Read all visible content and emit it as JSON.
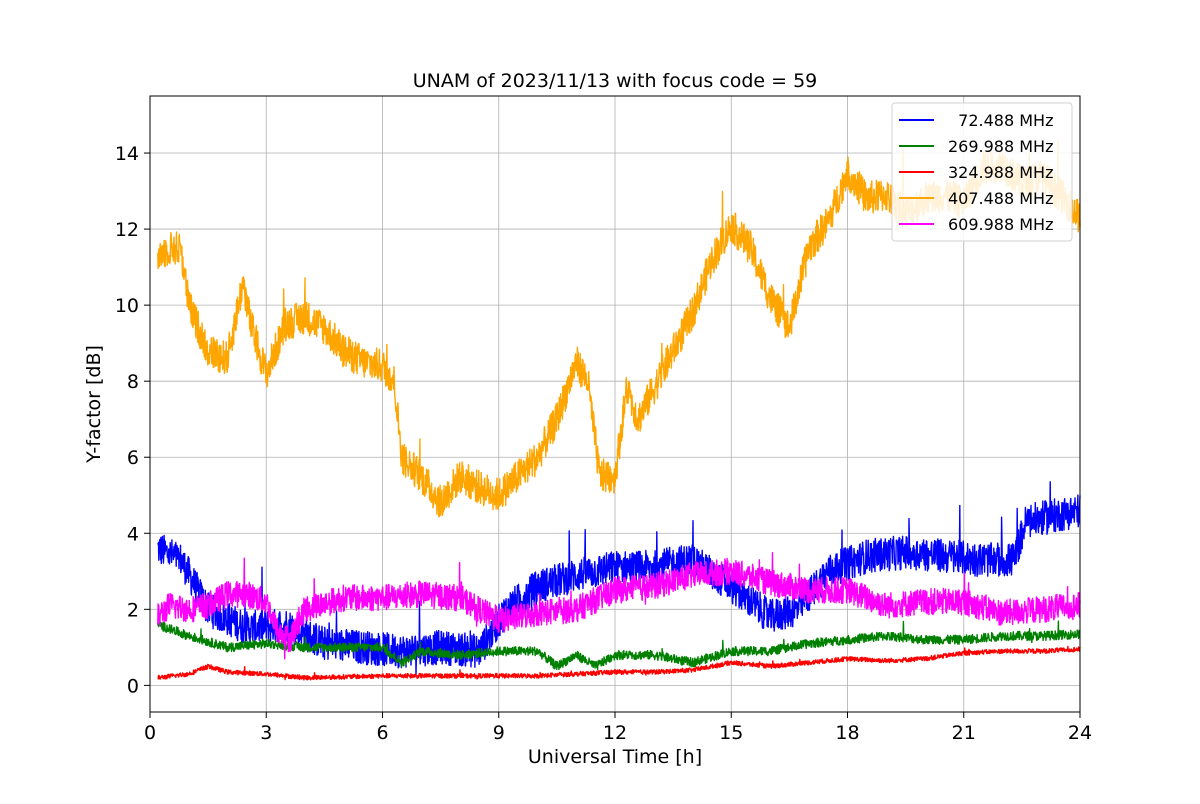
{
  "chart_data": {
    "type": "line",
    "title": "UNAM of 2023/11/13 with focus code = 59",
    "xlabel": "Universal Time [h]",
    "ylabel": "Y-factor [dB]",
    "xlim": [
      0,
      24
    ],
    "ylim": [
      -0.7,
      15.5
    ],
    "xticks": [
      0,
      3,
      6,
      9,
      12,
      15,
      18,
      21,
      24
    ],
    "yticks": [
      0,
      2,
      4,
      6,
      8,
      10,
      12,
      14
    ],
    "grid": true,
    "legend_position": "top-right",
    "series": [
      {
        "name": "  72.488 MHz",
        "color": "#0000ff",
        "noise": 0.45,
        "x": [
          0.2,
          0.8,
          1.5,
          2.5,
          3.5,
          4.5,
          5.5,
          6.5,
          7.5,
          8.5,
          9.2,
          10.0,
          11.0,
          12.0,
          13.0,
          14.0,
          15.0,
          16.0,
          16.7,
          17.5,
          18.5,
          19.5,
          20.5,
          21.5,
          22.3,
          22.6,
          23.5,
          24.0
        ],
        "y": [
          3.6,
          3.3,
          2.0,
          1.5,
          1.6,
          1.1,
          1.0,
          0.9,
          1.0,
          0.9,
          2.0,
          2.6,
          2.9,
          3.1,
          3.1,
          3.3,
          2.6,
          1.8,
          2.0,
          3.0,
          3.4,
          3.5,
          3.4,
          3.3,
          3.3,
          4.3,
          4.5,
          4.6
        ]
      },
      {
        "name": "269.988 MHz",
        "color": "#008000",
        "noise": 0.12,
        "x": [
          0.2,
          1.0,
          2.0,
          3.0,
          4.0,
          5.0,
          6.0,
          6.5,
          7.0,
          8.0,
          9.0,
          10.0,
          10.5,
          11.0,
          11.5,
          12.0,
          13.0,
          14.0,
          15.0,
          16.0,
          17.0,
          18.0,
          19.0,
          20.0,
          21.0,
          22.0,
          23.0,
          24.0
        ],
        "y": [
          1.6,
          1.3,
          1.0,
          1.1,
          1.0,
          1.0,
          1.0,
          0.6,
          0.9,
          0.8,
          0.9,
          0.9,
          0.5,
          0.8,
          0.5,
          0.8,
          0.8,
          0.6,
          0.9,
          0.9,
          1.1,
          1.2,
          1.3,
          1.2,
          1.2,
          1.3,
          1.3,
          1.35
        ]
      },
      {
        "name": "324.988 MHz",
        "color": "#ff0000",
        "noise": 0.06,
        "x": [
          0.2,
          1.0,
          1.5,
          2.0,
          3.0,
          4.0,
          6.0,
          8.0,
          10.0,
          12.0,
          13.0,
          14.0,
          15.0,
          16.0,
          17.0,
          18.0,
          19.0,
          20.0,
          21.0,
          22.0,
          23.0,
          24.0
        ],
        "y": [
          0.2,
          0.3,
          0.5,
          0.35,
          0.3,
          0.2,
          0.25,
          0.25,
          0.25,
          0.35,
          0.35,
          0.4,
          0.6,
          0.5,
          0.6,
          0.7,
          0.65,
          0.7,
          0.85,
          0.9,
          0.9,
          0.95
        ]
      },
      {
        "name": "407.488 MHz",
        "color": "#ffa500",
        "noise": 0.45,
        "x": [
          0.2,
          0.5,
          0.8,
          1.0,
          1.5,
          2.0,
          2.4,
          2.6,
          3.0,
          3.5,
          4.0,
          4.5,
          5.0,
          5.5,
          6.0,
          6.3,
          6.5,
          7.0,
          7.5,
          8.0,
          8.5,
          9.0,
          9.5,
          10.0,
          10.5,
          11.0,
          11.3,
          11.6,
          12.0,
          12.3,
          12.6,
          13.0,
          13.5,
          14.0,
          14.5,
          15.0,
          15.5,
          16.0,
          16.5,
          17.0,
          17.5,
          18.0,
          18.5,
          19.0,
          19.5,
          20.0,
          20.5,
          21.0,
          21.5,
          22.0,
          22.5,
          23.0,
          23.5,
          24.0
        ],
        "y": [
          11.3,
          11.5,
          11.5,
          10.0,
          8.8,
          8.6,
          10.6,
          9.5,
          8.2,
          9.5,
          9.7,
          9.4,
          8.8,
          8.5,
          8.4,
          8.0,
          6.0,
          5.5,
          4.8,
          5.5,
          5.2,
          5.0,
          5.5,
          6.0,
          7.0,
          8.5,
          8.0,
          5.5,
          5.5,
          7.8,
          7.0,
          7.8,
          8.8,
          9.8,
          11.2,
          12.1,
          11.5,
          10.2,
          9.4,
          11.5,
          12.2,
          13.5,
          12.8,
          12.9,
          12.4,
          12.8,
          12.9,
          12.7,
          13.6,
          13.7,
          13.2,
          13.4,
          12.9,
          12.3
        ]
      },
      {
        "name": "609.988 MHz",
        "color": "#ff00ff",
        "noise": 0.35,
        "x": [
          0.2,
          0.5,
          1.0,
          1.5,
          2.0,
          2.5,
          3.0,
          3.3,
          3.6,
          4.0,
          5.0,
          6.0,
          7.0,
          8.0,
          9.0,
          10.0,
          11.0,
          12.0,
          13.0,
          14.0,
          15.0,
          16.0,
          17.0,
          18.0,
          19.0,
          20.0,
          21.0,
          22.0,
          23.0,
          24.0
        ],
        "y": [
          1.8,
          2.1,
          2.0,
          2.1,
          2.4,
          2.4,
          2.2,
          1.4,
          1.2,
          2.0,
          2.3,
          2.3,
          2.4,
          2.3,
          1.7,
          1.9,
          2.0,
          2.5,
          2.6,
          2.9,
          3.0,
          2.7,
          2.5,
          2.5,
          2.1,
          2.2,
          2.2,
          1.9,
          2.0,
          2.1
        ]
      }
    ]
  }
}
